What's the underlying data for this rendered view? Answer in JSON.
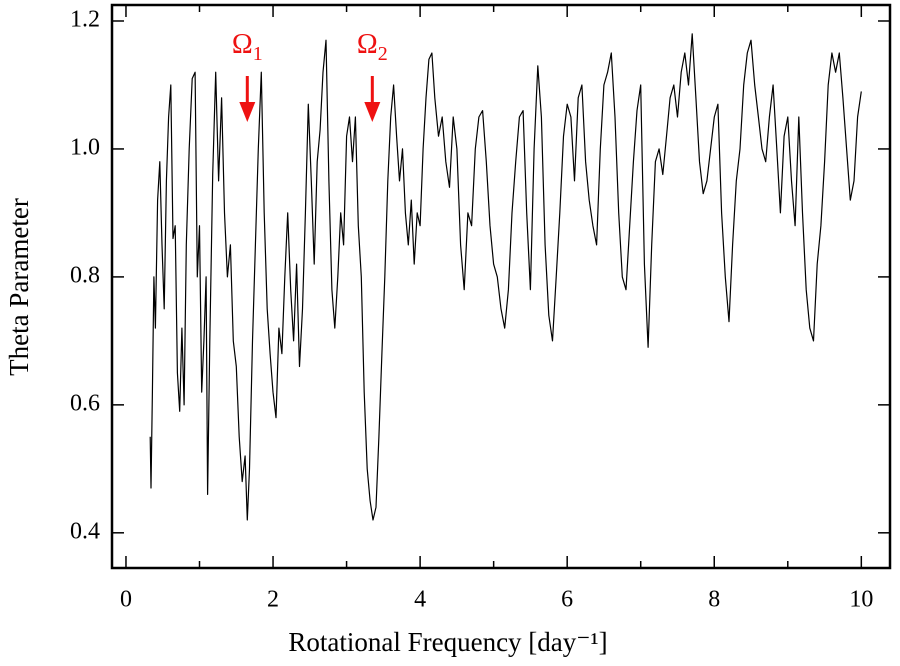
{
  "chart_data": {
    "type": "line",
    "xlabel": "Rotational Frequency [day⁻¹]",
    "ylabel": "Theta Parameter",
    "color": "#000000",
    "xlim": [
      -0.19,
      10.39
    ],
    "ylim": [
      0.345,
      1.225
    ],
    "xticks": [
      0,
      2,
      4,
      6,
      8,
      10
    ],
    "xminorticks": [
      1,
      3,
      5,
      7,
      9
    ],
    "yticks": [
      0.4,
      0.6,
      0.8,
      {
        "value": 1,
        "label": "1.0"
      },
      1.2
    ],
    "annotations": [
      {
        "text": "Ω",
        "sub": "1",
        "x": 1.65,
        "color": "#ee1111"
      },
      {
        "text": "Ω",
        "sub": "2",
        "x": 3.35,
        "color": "#ee1111"
      }
    ],
    "x": [
      0.33,
      0.34,
      0.36,
      0.38,
      0.4,
      0.43,
      0.46,
      0.49,
      0.52,
      0.55,
      0.58,
      0.61,
      0.64,
      0.67,
      0.7,
      0.73,
      0.76,
      0.79,
      0.82,
      0.86,
      0.9,
      0.94,
      0.97,
      1.0,
      1.03,
      1.06,
      1.09,
      1.11,
      1.14,
      1.18,
      1.22,
      1.26,
      1.3,
      1.34,
      1.38,
      1.42,
      1.46,
      1.5,
      1.54,
      1.58,
      1.62,
      1.65,
      1.68,
      1.72,
      1.76,
      1.8,
      1.84,
      1.88,
      1.92,
      1.96,
      2.0,
      2.04,
      2.08,
      2.12,
      2.16,
      2.2,
      2.24,
      2.28,
      2.32,
      2.36,
      2.4,
      2.44,
      2.48,
      2.52,
      2.56,
      2.6,
      2.64,
      2.68,
      2.72,
      2.76,
      2.8,
      2.84,
      2.88,
      2.92,
      2.96,
      3.0,
      3.04,
      3.08,
      3.12,
      3.16,
      3.2,
      3.24,
      3.28,
      3.32,
      3.36,
      3.4,
      3.44,
      3.48,
      3.52,
      3.56,
      3.6,
      3.64,
      3.68,
      3.72,
      3.76,
      3.8,
      3.84,
      3.88,
      3.92,
      3.96,
      4.0,
      4.04,
      4.08,
      4.12,
      4.16,
      4.2,
      4.25,
      4.3,
      4.35,
      4.4,
      4.45,
      4.5,
      4.55,
      4.6,
      4.65,
      4.7,
      4.75,
      4.8,
      4.85,
      4.9,
      4.95,
      5.0,
      5.05,
      5.1,
      5.15,
      5.2,
      5.25,
      5.3,
      5.35,
      5.4,
      5.45,
      5.5,
      5.55,
      5.6,
      5.65,
      5.7,
      5.75,
      5.8,
      5.85,
      5.9,
      5.95,
      6.0,
      6.05,
      6.1,
      6.15,
      6.2,
      6.25,
      6.3,
      6.35,
      6.4,
      6.45,
      6.5,
      6.55,
      6.6,
      6.65,
      6.7,
      6.75,
      6.8,
      6.85,
      6.9,
      6.95,
      7.0,
      7.05,
      7.1,
      7.15,
      7.2,
      7.25,
      7.3,
      7.35,
      7.4,
      7.45,
      7.5,
      7.55,
      7.6,
      7.65,
      7.7,
      7.75,
      7.8,
      7.85,
      7.9,
      7.95,
      8.0,
      8.05,
      8.1,
      8.15,
      8.2,
      8.25,
      8.3,
      8.35,
      8.4,
      8.45,
      8.5,
      8.55,
      8.6,
      8.65,
      8.7,
      8.75,
      8.8,
      8.85,
      8.9,
      8.95,
      9.0,
      9.05,
      9.1,
      9.15,
      9.2,
      9.25,
      9.3,
      9.35,
      9.4,
      9.45,
      9.5,
      9.55,
      9.6,
      9.65,
      9.7,
      9.75,
      9.8,
      9.85,
      9.9,
      9.95,
      10.0
    ],
    "values": [
      0.55,
      0.47,
      0.62,
      0.8,
      0.72,
      0.92,
      0.98,
      0.85,
      0.75,
      0.95,
      1.05,
      1.1,
      0.86,
      0.88,
      0.65,
      0.59,
      0.72,
      0.6,
      0.85,
      1.0,
      1.11,
      1.12,
      0.8,
      0.88,
      0.62,
      0.7,
      0.8,
      0.46,
      0.7,
      0.96,
      1.12,
      0.95,
      1.08,
      0.9,
      0.8,
      0.85,
      0.7,
      0.66,
      0.55,
      0.48,
      0.52,
      0.42,
      0.5,
      0.7,
      0.85,
      1.0,
      1.12,
      0.9,
      0.75,
      0.68,
      0.62,
      0.58,
      0.72,
      0.68,
      0.8,
      0.9,
      0.78,
      0.7,
      0.82,
      0.66,
      0.75,
      0.9,
      1.07,
      0.95,
      0.82,
      0.98,
      1.03,
      1.12,
      1.17,
      0.95,
      0.78,
      0.72,
      0.8,
      0.9,
      0.85,
      1.02,
      1.05,
      0.98,
      1.05,
      0.88,
      0.8,
      0.62,
      0.5,
      0.45,
      0.42,
      0.44,
      0.55,
      0.68,
      0.8,
      0.95,
      1.05,
      1.1,
      1.02,
      0.95,
      1.0,
      0.9,
      0.85,
      0.92,
      0.82,
      0.9,
      0.88,
      1.0,
      1.08,
      1.14,
      1.15,
      1.08,
      1.02,
      1.05,
      0.98,
      0.94,
      1.05,
      1.0,
      0.85,
      0.78,
      0.9,
      0.88,
      1.0,
      1.05,
      1.06,
      0.98,
      0.88,
      0.82,
      0.8,
      0.75,
      0.72,
      0.78,
      0.9,
      0.98,
      1.05,
      1.06,
      0.9,
      0.78,
      1.0,
      1.13,
      1.05,
      0.85,
      0.74,
      0.7,
      0.8,
      0.9,
      1.02,
      1.07,
      1.05,
      0.95,
      1.08,
      1.1,
      0.98,
      0.92,
      0.88,
      0.85,
      1.0,
      1.1,
      1.12,
      1.15,
      1.05,
      0.9,
      0.8,
      0.78,
      0.88,
      0.98,
      1.06,
      1.1,
      0.82,
      0.69,
      0.85,
      0.98,
      1.0,
      0.96,
      1.02,
      1.08,
      1.1,
      1.05,
      1.12,
      1.15,
      1.1,
      1.18,
      1.08,
      0.98,
      0.93,
      0.95,
      1.0,
      1.05,
      1.07,
      0.9,
      0.8,
      0.73,
      0.85,
      0.95,
      1.0,
      1.1,
      1.15,
      1.17,
      1.1,
      1.05,
      1.0,
      0.98,
      1.05,
      1.1,
      1.0,
      0.9,
      1.02,
      1.05,
      0.95,
      0.88,
      1.05,
      0.9,
      0.78,
      0.72,
      0.7,
      0.82,
      0.88,
      0.98,
      1.1,
      1.15,
      1.12,
      1.15,
      1.08,
      1.0,
      0.92,
      0.95,
      1.05,
      1.09
    ]
  }
}
